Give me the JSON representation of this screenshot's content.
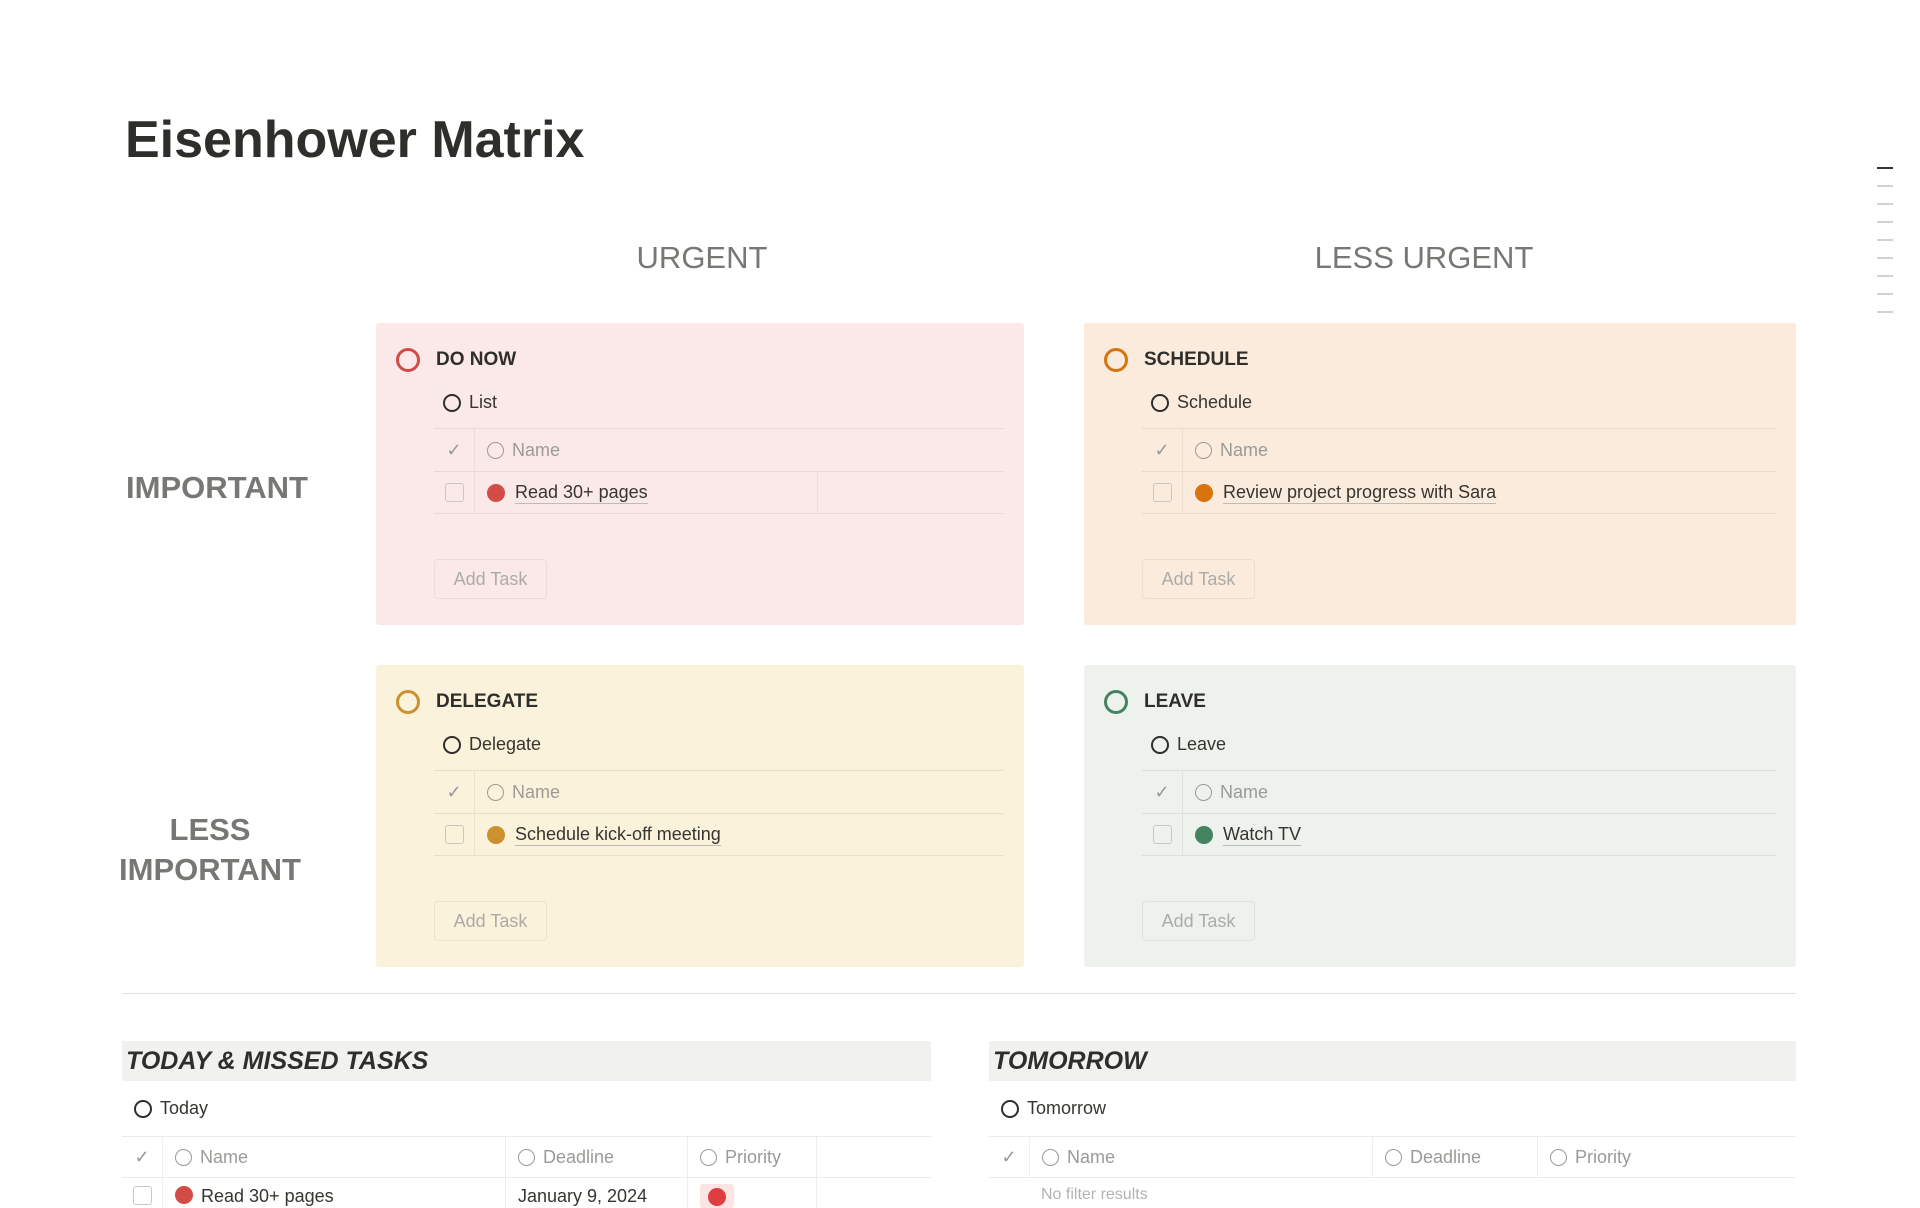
{
  "page_title": "Eisenhower Matrix",
  "columns": {
    "urgent": "URGENT",
    "less_urgent": "LESS URGENT"
  },
  "rows": {
    "important": "IMPORTANT",
    "less_important_1": "LESS",
    "less_important_2": "IMPORTANT"
  },
  "quadrants": [
    {
      "title": "DO NOW",
      "view": "List",
      "header_name": "Name",
      "task": "Read 30+ pages",
      "add": "Add Task",
      "color": "#d44c47",
      "bg": "#fbe9e9"
    },
    {
      "title": "SCHEDULE",
      "view": "Schedule",
      "header_name": "Name",
      "task": "Review project progress with Sara",
      "add": "Add Task",
      "color": "#d9730d",
      "bg": "#fbebdd"
    },
    {
      "title": "DELEGATE",
      "view": "Delegate",
      "header_name": "Name",
      "task": "Schedule kick-off meeting",
      "add": "Add Task",
      "color": "#cb912f",
      "bg": "#fbf2dc"
    },
    {
      "title": "LEAVE",
      "view": "Leave",
      "header_name": "Name",
      "task": "Watch TV",
      "add": "Add Task",
      "color": "#448361",
      "bg": "#edf2ec"
    }
  ],
  "today": {
    "title": "TODAY & MISSED TASKS",
    "view": "Today",
    "headers": [
      "Name",
      "Deadline",
      "Priority"
    ],
    "rows": [
      {
        "name": "Read 30+ pages",
        "deadline": "January 9, 2024",
        "priority": "red-circle"
      }
    ]
  },
  "tomorrow": {
    "title": "TOMORROW",
    "view": "Tomorrow",
    "headers": [
      "Name",
      "Deadline",
      "Priority"
    ],
    "empty": "No filter results"
  }
}
